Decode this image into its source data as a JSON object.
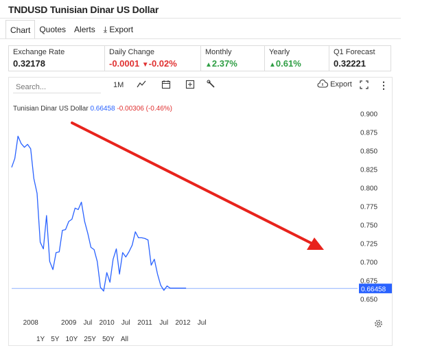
{
  "title": "TNDUSD Tunisian Dinar US Dollar",
  "tabs": [
    {
      "label": "Chart"
    },
    {
      "label": "Quotes"
    },
    {
      "label": "Alerts"
    },
    {
      "label": "Export"
    }
  ],
  "quotes": {
    "exchange_rate": {
      "label": "Exchange Rate",
      "value": "0.32178"
    },
    "daily_change": {
      "label": "Daily Change",
      "value": "-0.0001",
      "pct": "-0.02%"
    },
    "monthly": {
      "label": "Monthly",
      "value": "2.37%"
    },
    "yearly": {
      "label": "Yearly",
      "value": "0.61%"
    },
    "forecast": {
      "label": "Q1 Forecast",
      "value": "0.32221"
    }
  },
  "toolbar": {
    "search_placeholder": "Search...",
    "interval": "1M",
    "export_label": "Export"
  },
  "legend": {
    "name": "Tunisian Dinar US Dollar",
    "last": "0.66458",
    "change": "-0.00306 (-0.46%)"
  },
  "ranges": [
    "1Y",
    "5Y",
    "10Y",
    "25Y",
    "50Y",
    "All"
  ],
  "colors": {
    "line": "#2962ff",
    "arrow": "#e8231c",
    "negative": "#e03131",
    "positive": "#2f9e44"
  },
  "icons": {
    "line_type": "chart-line-icon",
    "calendar": "calendar-icon",
    "add": "plus-square-icon",
    "draw": "wrench-icon",
    "export": "cloud-icon",
    "fullscreen": "expand-icon",
    "menu": "more-vertical-icon",
    "settings": "gear-icon"
  },
  "chart_data": {
    "type": "line",
    "series": [
      {
        "name": "Tunisian Dinar US Dollar",
        "x": [
          "2007-07",
          "2007-08",
          "2007-09",
          "2007-10",
          "2007-11",
          "2007-12",
          "2008-01",
          "2008-02",
          "2008-03",
          "2008-04",
          "2008-05",
          "2008-06",
          "2008-07",
          "2008-08",
          "2008-09",
          "2008-10",
          "2008-11",
          "2008-12",
          "2009-01",
          "2009-02",
          "2009-03",
          "2009-04",
          "2009-05",
          "2009-06",
          "2009-07",
          "2009-08",
          "2009-09",
          "2009-10",
          "2009-11",
          "2009-12",
          "2010-01",
          "2010-02",
          "2010-03",
          "2010-04",
          "2010-05",
          "2010-06",
          "2010-07",
          "2010-08",
          "2010-09",
          "2010-10",
          "2010-11",
          "2010-12",
          "2011-01",
          "2011-02",
          "2011-03",
          "2011-04",
          "2011-05",
          "2011-06",
          "2011-07",
          "2011-08",
          "2011-09",
          "2011-10",
          "2011-11",
          "2011-12",
          "2012-01",
          "2012-02",
          "2012-03",
          "2012-04"
        ],
        "values": [
          0.828,
          0.84,
          0.87,
          0.86,
          0.855,
          0.859,
          0.853,
          0.813,
          0.793,
          0.727,
          0.718,
          0.763,
          0.701,
          0.69,
          0.713,
          0.714,
          0.743,
          0.744,
          0.755,
          0.758,
          0.773,
          0.771,
          0.781,
          0.755,
          0.739,
          0.72,
          0.717,
          0.701,
          0.666,
          0.661,
          0.686,
          0.673,
          0.704,
          0.718,
          0.684,
          0.713,
          0.707,
          0.714,
          0.723,
          0.741,
          0.733,
          0.733,
          0.732,
          0.73,
          0.696,
          0.704,
          0.684,
          0.669,
          0.662,
          0.668,
          0.665,
          0.665,
          0.665,
          0.665,
          0.665,
          0.665,
          0.665,
          0.665
        ]
      }
    ],
    "x_ticks": [
      "2008",
      "2009",
      "Jul",
      "2010",
      "Jul",
      "2011",
      "Jul",
      "2012",
      "Jul"
    ],
    "y_ticks": [
      "0.900",
      "0.875",
      "0.850",
      "0.825",
      "0.800",
      "0.775",
      "0.750",
      "0.725",
      "0.700",
      "0.675",
      "0.650"
    ],
    "ylim": [
      0.65,
      0.9
    ],
    "last_value_label": "0.66458",
    "last_value": 0.66458,
    "annotation": "trend-down-arrow"
  }
}
